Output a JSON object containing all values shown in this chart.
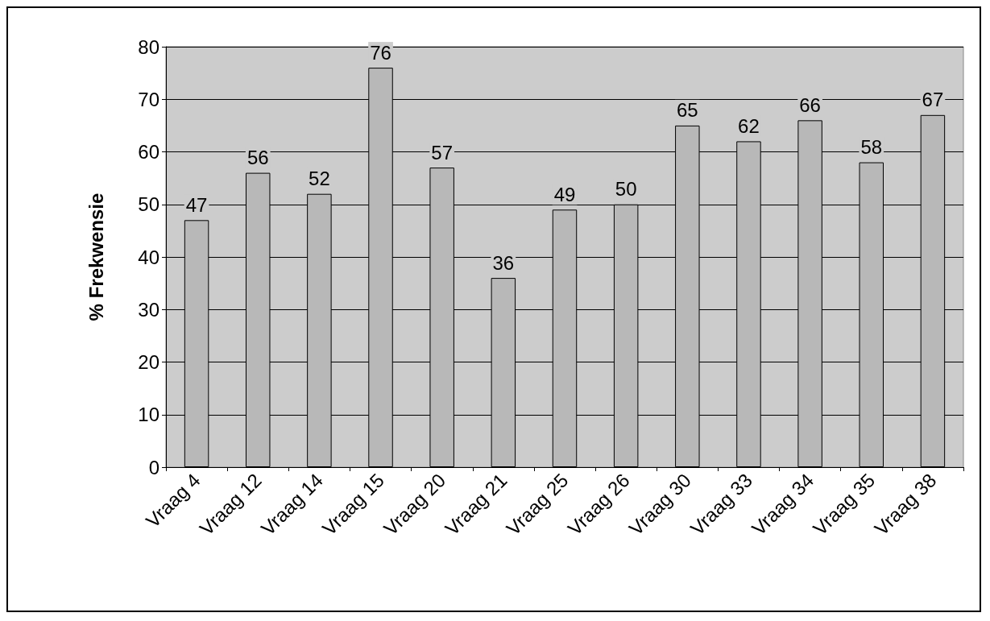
{
  "chart_data": {
    "type": "bar",
    "ylabel": "% Frekwensie",
    "categories": [
      "Vraag 4",
      "Vraag 12",
      "Vraag 14",
      "Vraag 15",
      "Vraag 20",
      "Vraag 21",
      "Vraag 25",
      "Vraag 26",
      "Vraag 30",
      "Vraag 33",
      "Vraag 34",
      "Vraag 35",
      "Vraag 38"
    ],
    "values": [
      47,
      56,
      52,
      76,
      57,
      36,
      49,
      50,
      65,
      62,
      66,
      58,
      67
    ],
    "color": "#b8b8b8",
    "ylim": [
      0,
      80
    ],
    "yticks": [
      0,
      10,
      20,
      30,
      40,
      50,
      60,
      70,
      80
    ],
    "grid": "y",
    "data_labels": true
  }
}
